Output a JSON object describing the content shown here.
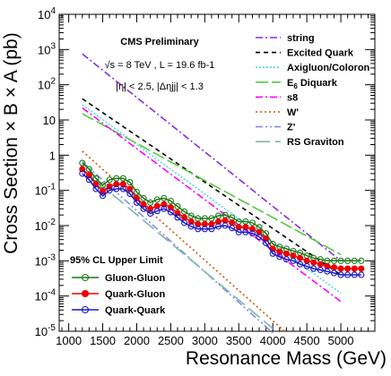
{
  "chart_data": {
    "type": "line",
    "xlabel": "Resonance Mass (GeV)",
    "ylabel": "Cross Section × B × A (pb)",
    "xlim": [
      860,
      5500
    ],
    "ylim_log10": [
      -5,
      4
    ],
    "log_y": true,
    "x_ticks": [
      1000,
      1500,
      2000,
      2500,
      3000,
      3500,
      4000,
      4500,
      5000
    ],
    "y_tick_labels": [
      "10-5",
      "10-4",
      "10-3",
      "10-2",
      "10-1",
      "1",
      "10",
      "102",
      "103",
      "104"
    ],
    "annotations": {
      "experiment": "CMS Preliminary",
      "energy_lumi": "√s = 8 TeV , L = 19.6 fb-1",
      "cuts": "|η| < 2.5, |Δηjj| < 1.3",
      "limit_header": "95% CL Upper Limit"
    },
    "model_series": [
      {
        "name": "string",
        "color": "#8a2be2",
        "dash": "8,3,2,3",
        "x": [
          1200,
          5000
        ],
        "y": [
          750,
          0.001
        ]
      },
      {
        "name": "Excited Quark",
        "color": "#000000",
        "dash": "5,4",
        "x": [
          1200,
          5000
        ],
        "y": [
          40,
          0.0004
        ]
      },
      {
        "name": "Axigluon/Coloron",
        "color": "#4fd9ee",
        "dash": "2,2",
        "x": [
          1200,
          5000
        ],
        "y": [
          27,
          0.00012
        ]
      },
      {
        "name": "E6 Diquark",
        "color": "#55c93d",
        "dash": "14,4",
        "x": [
          1200,
          5000
        ],
        "y": [
          15,
          0.0015
        ]
      },
      {
        "name": "s8",
        "color": "#ff00ff",
        "dash": "8,3,2,3",
        "x": [
          1200,
          5000
        ],
        "y": [
          22,
          7e-05
        ]
      },
      {
        "name": "W'",
        "color": "#d35400",
        "dash": "2,3",
        "x": [
          1200,
          4200
        ],
        "y": [
          1.3,
          9e-06
        ]
      },
      {
        "name": "Z'",
        "color": "#8888ee",
        "dash": "8,3,2,3,2,3",
        "x": [
          1200,
          4000
        ],
        "y": [
          0.65,
          9e-06
        ]
      },
      {
        "name": "RS Graviton",
        "color": "#7fb8a8",
        "dash": "16,6",
        "x": [
          1200,
          4000
        ],
        "y": [
          0.4,
          1.2e-05
        ]
      }
    ],
    "limit_series": [
      {
        "name": "Gluon-Gluon",
        "color": "#1a7a1a",
        "marker": "open-circle",
        "x": [
          1200,
          1300,
          1400,
          1500,
          1600,
          1700,
          1800,
          1900,
          2000,
          2100,
          2200,
          2300,
          2400,
          2500,
          2600,
          2700,
          2800,
          2900,
          3000,
          3100,
          3200,
          3300,
          3400,
          3500,
          3600,
          3700,
          3800,
          3900,
          4000,
          4100,
          4200,
          4300,
          4400,
          4500,
          4600,
          4700,
          4800,
          4900,
          5000,
          5100,
          5200,
          5300
        ],
        "y": [
          0.6,
          0.4,
          0.22,
          0.14,
          0.2,
          0.22,
          0.22,
          0.17,
          0.09,
          0.06,
          0.045,
          0.055,
          0.06,
          0.05,
          0.035,
          0.025,
          0.019,
          0.016,
          0.016,
          0.016,
          0.019,
          0.02,
          0.017,
          0.013,
          0.013,
          0.012,
          0.009,
          0.006,
          0.003,
          0.0025,
          0.0022,
          0.0019,
          0.0017,
          0.0014,
          0.0012,
          0.0011,
          0.001,
          0.001,
          0.001,
          0.001,
          0.001,
          0.001
        ]
      },
      {
        "name": "Quark-Gluon",
        "color": "#ee0000",
        "marker": "filled-circle",
        "x": [
          1200,
          1300,
          1400,
          1500,
          1600,
          1700,
          1800,
          1900,
          2000,
          2100,
          2200,
          2300,
          2400,
          2500,
          2600,
          2700,
          2800,
          2900,
          3000,
          3100,
          3200,
          3300,
          3400,
          3500,
          3600,
          3700,
          3800,
          3900,
          4000,
          4100,
          4200,
          4300,
          4400,
          4500,
          4600,
          4700,
          4800,
          4900,
          5000,
          5100,
          5200,
          5300
        ],
        "y": [
          0.4,
          0.27,
          0.15,
          0.095,
          0.13,
          0.15,
          0.15,
          0.11,
          0.06,
          0.04,
          0.03,
          0.036,
          0.04,
          0.033,
          0.023,
          0.017,
          0.013,
          0.011,
          0.011,
          0.011,
          0.013,
          0.014,
          0.012,
          0.009,
          0.009,
          0.008,
          0.0065,
          0.0043,
          0.0022,
          0.0018,
          0.0016,
          0.0014,
          0.0012,
          0.001,
          0.0009,
          0.0008,
          0.0007,
          0.00065,
          0.0006,
          0.0006,
          0.0006,
          0.0006
        ]
      },
      {
        "name": "Quark-Quark",
        "color": "#1818c8",
        "marker": "open-circle",
        "x": [
          1200,
          1300,
          1400,
          1500,
          1600,
          1700,
          1800,
          1900,
          2000,
          2100,
          2200,
          2300,
          2400,
          2500,
          2600,
          2700,
          2800,
          2900,
          3000,
          3100,
          3200,
          3300,
          3400,
          3500,
          3600,
          3700,
          3800,
          3900,
          4000,
          4100,
          4200,
          4300,
          4400,
          4500,
          4600,
          4700,
          4800,
          4900,
          5000,
          5100,
          5200,
          5300
        ],
        "y": [
          0.3,
          0.2,
          0.11,
          0.07,
          0.1,
          0.11,
          0.11,
          0.08,
          0.045,
          0.03,
          0.022,
          0.026,
          0.03,
          0.024,
          0.017,
          0.012,
          0.0095,
          0.008,
          0.008,
          0.008,
          0.0095,
          0.01,
          0.0085,
          0.0065,
          0.0065,
          0.006,
          0.0048,
          0.0032,
          0.0016,
          0.0013,
          0.0011,
          0.001,
          0.0008,
          0.0007,
          0.0006,
          0.00055,
          0.0005,
          0.00045,
          0.0004,
          0.0004,
          0.0004,
          0.0004
        ]
      }
    ]
  }
}
